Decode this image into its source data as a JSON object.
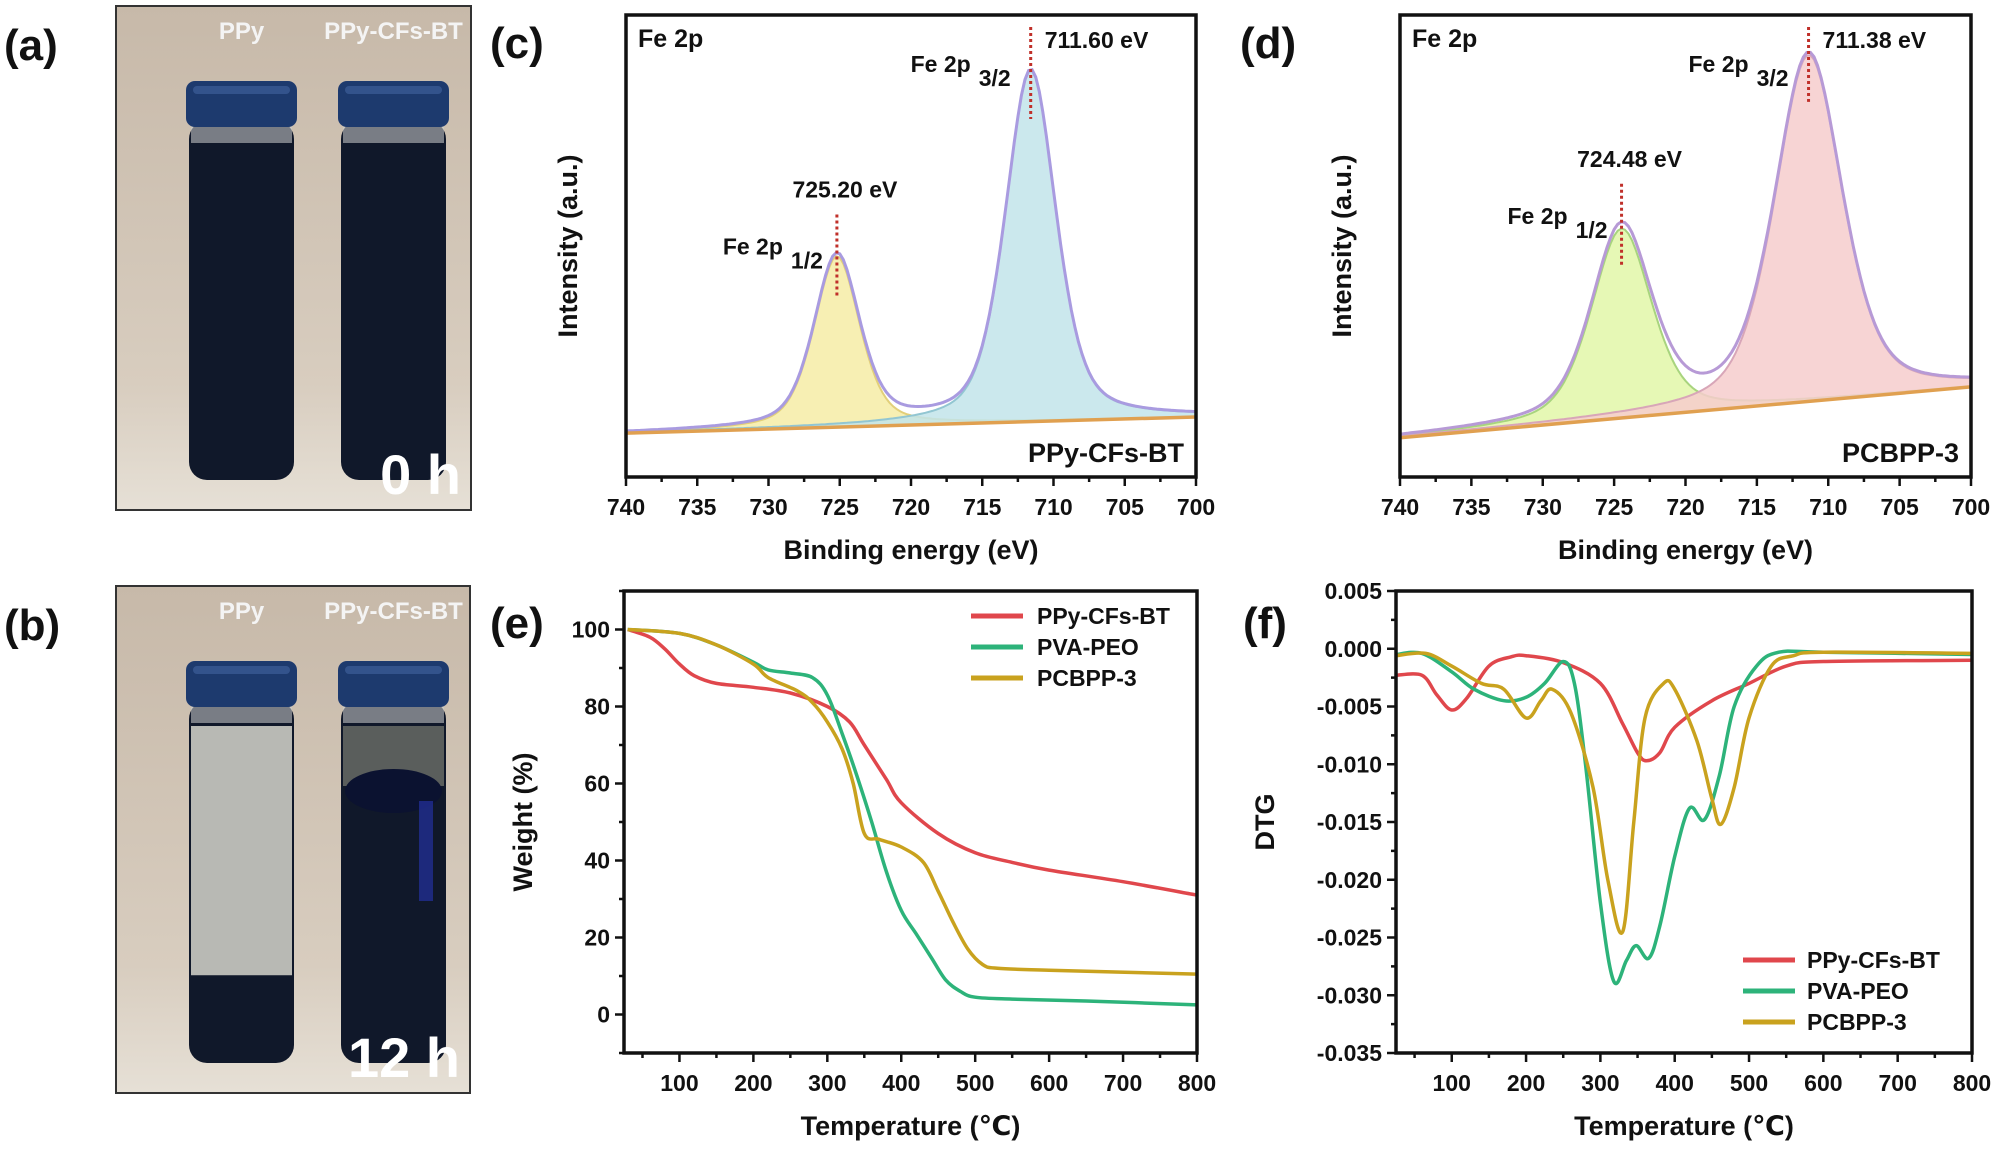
{
  "photos": [
    {
      "panel_label": "(a)",
      "vial_labels": [
        "PPy",
        "PPy-CFs-BT"
      ],
      "time": "0 h",
      "state": "both-dispersed"
    },
    {
      "panel_label": "(b)",
      "vial_labels": [
        "PPy",
        "PPy-CFs-BT"
      ],
      "time": "12 h",
      "state": "ppy-sedimented"
    }
  ],
  "colors": {
    "background": "#c9bdae",
    "vial_dark": "#10182a",
    "cap": "#1d3a6e",
    "ppy_clear_liquid": "#b8b9b4"
  },
  "chart_data": [
    {
      "type": "area",
      "panel_label": "(c)",
      "title": "Fe 2p",
      "sample": "PPy-CFs-BT",
      "xlabel": "Binding energy (eV)",
      "ylabel": "Intensity (a.u.)",
      "xlim": [
        740,
        700
      ],
      "x_reversed": true,
      "xticks": [
        "740",
        "735",
        "730",
        "725",
        "720",
        "715",
        "710",
        "705",
        "700"
      ],
      "ylim": [
        0,
        1
      ],
      "baseline": [
        0.095,
        0.13
      ],
      "envelope_color": "#a99be0",
      "baseline_color": "#e0a050",
      "peaks": [
        {
          "label": "Fe 2p",
          "sub": "1/2",
          "position_label": "725.20 eV",
          "center": 725.2,
          "intensity": 0.37,
          "fwhm": 3.8,
          "fill": "#f6eca6",
          "stroke": "#e2cf7a"
        },
        {
          "label": "Fe 2p",
          "sub": "3/2",
          "position_label": "711.60 eV",
          "center": 711.6,
          "intensity": 0.76,
          "fwhm": 4.2,
          "fill": "#c2e4ea",
          "stroke": "#92c6d2"
        }
      ]
    },
    {
      "type": "area",
      "panel_label": "(d)",
      "title": "Fe 2p",
      "sample": "PCBPP-3",
      "xlabel": "Binding energy (eV)",
      "ylabel": "Intensity (a.u.)",
      "xlim": [
        740,
        700
      ],
      "x_reversed": true,
      "xticks": [
        "740",
        "735",
        "730",
        "725",
        "720",
        "715",
        "710",
        "705",
        "700"
      ],
      "ylim": [
        0,
        1
      ],
      "baseline": [
        0.085,
        0.195
      ],
      "envelope_color": "#b79ad6",
      "baseline_color": "#e0a050",
      "peaks": [
        {
          "label": "Fe 2p",
          "sub": "1/2",
          "position_label": "724.48 eV",
          "center": 724.48,
          "intensity": 0.41,
          "fwhm": 5.0,
          "fill": "#e2f7a8",
          "stroke": "#a8d47e"
        },
        {
          "label": "Fe 2p",
          "sub": "3/2",
          "position_label": "711.38 eV",
          "center": 711.38,
          "intensity": 0.75,
          "fwhm": 5.6,
          "fill": "#f6cccc",
          "stroke": "#d8a6b8"
        }
      ]
    },
    {
      "type": "line",
      "panel_label": "(e)",
      "xlabel": "Temperature (℃)",
      "ylabel": "Weight (%)",
      "xlim": [
        25,
        800
      ],
      "ylim": [
        -10,
        110
      ],
      "xticks": [
        "100",
        "200",
        "300",
        "400",
        "500",
        "600",
        "700",
        "800"
      ],
      "yticks": [
        "0",
        "20",
        "40",
        "60",
        "80",
        "100"
      ],
      "legend": "top-right",
      "series": [
        {
          "name": "PPy-CFs-BT",
          "color": "#e0474c",
          "x": [
            30,
            60,
            80,
            100,
            120,
            150,
            200,
            250,
            300,
            330,
            350,
            380,
            400,
            450,
            500,
            550,
            600,
            700,
            800
          ],
          "y": [
            100,
            98,
            95,
            91,
            88,
            86,
            85,
            83.5,
            80,
            76,
            70,
            61,
            55,
            47,
            42,
            39.5,
            37.5,
            34.5,
            31
          ]
        },
        {
          "name": "PVA-PEO",
          "color": "#2db37a",
          "x": [
            30,
            100,
            150,
            200,
            220,
            250,
            280,
            300,
            320,
            340,
            360,
            380,
            400,
            420,
            440,
            460,
            480,
            500,
            550,
            650,
            800
          ],
          "y": [
            100,
            99,
            96,
            91.5,
            89.5,
            88.7,
            87.5,
            83,
            73,
            62,
            50,
            37,
            27,
            21,
            15,
            9,
            6,
            4.5,
            4,
            3.5,
            2.5
          ]
        },
        {
          "name": "PCBPP-3",
          "color": "#c9a21e",
          "x": [
            30,
            100,
            150,
            200,
            220,
            260,
            280,
            300,
            320,
            335,
            350,
            370,
            400,
            430,
            450,
            470,
            490,
            510,
            530,
            600,
            800
          ],
          "y": [
            100,
            99,
            96,
            91,
            87.5,
            84,
            81,
            76,
            69,
            60,
            47,
            45.5,
            43.5,
            39.5,
            32,
            24,
            17,
            13,
            12,
            11.5,
            10.5
          ]
        }
      ]
    },
    {
      "type": "line",
      "panel_label": "(f)",
      "xlabel": "Temperature (℃)",
      "ylabel": "DTG",
      "xlim": [
        25,
        800
      ],
      "ylim": [
        -0.035,
        0.005
      ],
      "xticks": [
        "100",
        "200",
        "300",
        "400",
        "500",
        "600",
        "700",
        "800"
      ],
      "yticks": [
        "0.005",
        "0.000",
        "-0.005",
        "-0.010",
        "-0.015",
        "-0.020",
        "-0.025",
        "-0.030",
        "-0.035"
      ],
      "legend": "bottom-right",
      "series": [
        {
          "name": "PPy-CFs-BT",
          "color": "#e0474c",
          "x": [
            25,
            60,
            80,
            100,
            120,
            150,
            180,
            200,
            250,
            300,
            330,
            350,
            362,
            380,
            400,
            450,
            500,
            550,
            600,
            800
          ],
          "y": [
            -0.0023,
            -0.0023,
            -0.004,
            -0.0053,
            -0.0043,
            -0.0015,
            -0.0007,
            -0.0006,
            -0.0012,
            -0.003,
            -0.0065,
            -0.009,
            -0.0097,
            -0.009,
            -0.0068,
            -0.0045,
            -0.003,
            -0.0015,
            -0.0011,
            -0.001
          ]
        },
        {
          "name": "PVA-PEO",
          "color": "#2db37a",
          "x": [
            25,
            60,
            100,
            130,
            170,
            200,
            225,
            250,
            265,
            280,
            300,
            318,
            335,
            348,
            365,
            380,
            400,
            420,
            440,
            460,
            480,
            510,
            540,
            600,
            800
          ],
          "y": [
            -0.0005,
            -0.0004,
            -0.002,
            -0.0035,
            -0.0045,
            -0.0042,
            -0.003,
            -0.0011,
            -0.003,
            -0.01,
            -0.022,
            -0.0288,
            -0.027,
            -0.0257,
            -0.0268,
            -0.024,
            -0.018,
            -0.0138,
            -0.0148,
            -0.011,
            -0.005,
            -0.0015,
            -0.0003,
            -0.0003,
            -0.0005
          ]
        },
        {
          "name": "PCBPP-3",
          "color": "#c9a21e",
          "x": [
            25,
            65,
            100,
            140,
            170,
            200,
            220,
            235,
            260,
            290,
            310,
            330,
            345,
            360,
            385,
            400,
            430,
            450,
            462,
            480,
            500,
            530,
            560,
            600,
            800
          ],
          "y": [
            -0.0006,
            -0.0004,
            -0.0015,
            -0.003,
            -0.0035,
            -0.006,
            -0.0045,
            -0.0035,
            -0.0055,
            -0.012,
            -0.02,
            -0.0245,
            -0.015,
            -0.006,
            -0.003,
            -0.0035,
            -0.008,
            -0.013,
            -0.0152,
            -0.012,
            -0.006,
            -0.0015,
            -0.0006,
            -0.0003,
            -0.0004
          ]
        }
      ]
    }
  ]
}
